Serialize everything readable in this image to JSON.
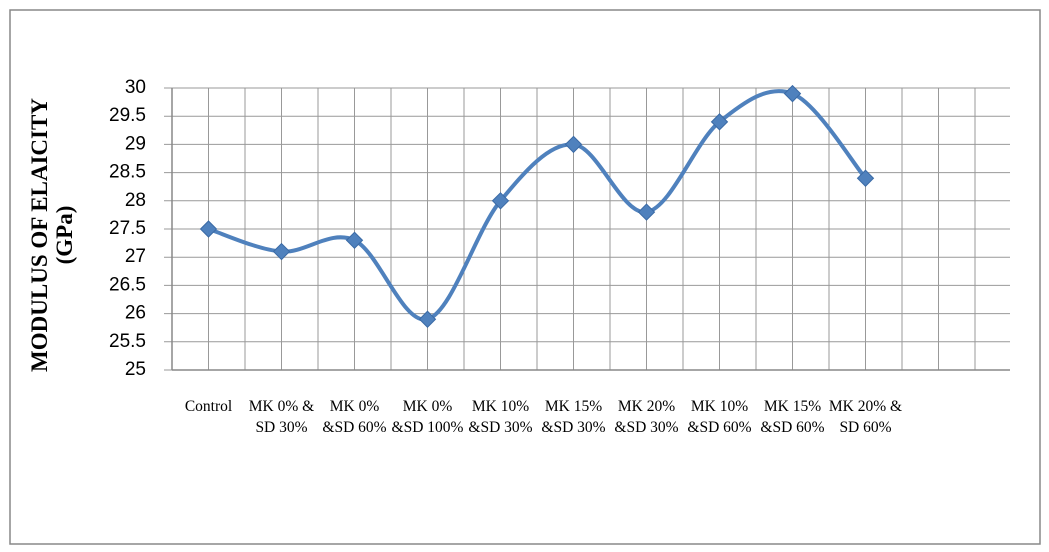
{
  "chart_data": {
    "type": "line",
    "y_label": "MODULUS OF ELAICITY (GPa)",
    "categories": [
      "Control",
      "MK 0% & SD 30%",
      "MK 0% &SD 60%",
      "MK 0% &SD 100%",
      "MK 10% &SD 30%",
      "MK 15% &SD 30%",
      "MK 20% &SD 30%",
      "MK 10% &SD 60%",
      "MK 15% &SD 60%",
      "MK 20% & SD 60%"
    ],
    "values": [
      27.5,
      27.1,
      27.3,
      25.9,
      28,
      29,
      27.8,
      29.4,
      29.9,
      28.4
    ],
    "color": "#4f81bd",
    "smooth": true,
    "grid": true,
    "ylim": [
      25,
      30
    ],
    "yticks": [
      25,
      25.5,
      26,
      26.5,
      27,
      27.5,
      28,
      28.5,
      29,
      29.5,
      30
    ]
  }
}
